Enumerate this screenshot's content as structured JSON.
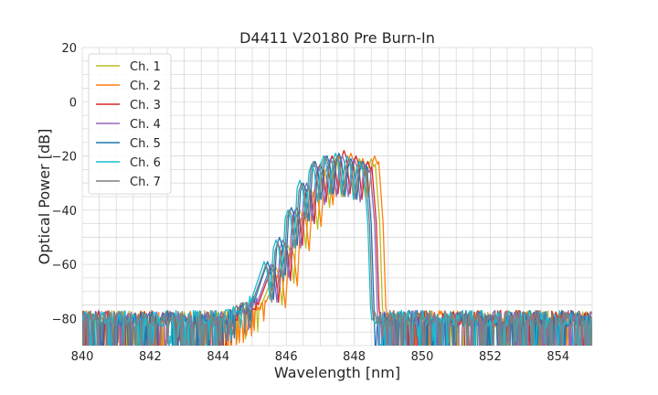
{
  "chart_data": {
    "type": "line",
    "title": "D4411 V20180 Pre Burn-In",
    "xlabel": "Wavelength [nm]",
    "ylabel": "Optical Power [dB]",
    "xlim": [
      840,
      855
    ],
    "ylim": [
      -90,
      20
    ],
    "xticks": [
      840,
      842,
      844,
      846,
      848,
      850,
      852,
      854
    ],
    "yticks": [
      -80,
      -60,
      -40,
      -20,
      0,
      20
    ],
    "grid": true,
    "legend_position": "top-left",
    "noise_floor_db": -80,
    "series": [
      {
        "name": "Ch. 1",
        "color": "#bcbd22",
        "peaks": [
          {
            "x": 845.7,
            "y": -61
          },
          {
            "x": 846.05,
            "y": -53
          },
          {
            "x": 846.4,
            "y": -40
          },
          {
            "x": 846.75,
            "y": -33
          },
          {
            "x": 847.1,
            "y": -25
          },
          {
            "x": 847.45,
            "y": -21
          },
          {
            "x": 847.8,
            "y": -20
          },
          {
            "x": 848.15,
            "y": -21
          },
          {
            "x": 848.5,
            "y": -21
          }
        ]
      },
      {
        "name": "Ch. 2",
        "color": "#ff7f0e",
        "peaks": [
          {
            "x": 845.8,
            "y": -62
          },
          {
            "x": 846.15,
            "y": -54
          },
          {
            "x": 846.5,
            "y": -41
          },
          {
            "x": 846.85,
            "y": -32
          },
          {
            "x": 847.2,
            "y": -24
          },
          {
            "x": 847.55,
            "y": -20
          },
          {
            "x": 847.9,
            "y": -19
          },
          {
            "x": 848.25,
            "y": -21
          },
          {
            "x": 848.6,
            "y": -20
          }
        ]
      },
      {
        "name": "Ch. 3",
        "color": "#d62728",
        "peaks": [
          {
            "x": 845.6,
            "y": -60
          },
          {
            "x": 845.95,
            "y": -52
          },
          {
            "x": 846.3,
            "y": -39
          },
          {
            "x": 846.65,
            "y": -31
          },
          {
            "x": 847.0,
            "y": -23
          },
          {
            "x": 847.35,
            "y": -20
          },
          {
            "x": 847.7,
            "y": -18
          },
          {
            "x": 848.05,
            "y": -20
          },
          {
            "x": 848.4,
            "y": -22
          }
        ]
      },
      {
        "name": "Ch. 4",
        "color": "#9467bd",
        "peaks": [
          {
            "x": 845.55,
            "y": -60
          },
          {
            "x": 845.9,
            "y": -51
          },
          {
            "x": 846.25,
            "y": -40
          },
          {
            "x": 846.6,
            "y": -30
          },
          {
            "x": 846.95,
            "y": -24
          },
          {
            "x": 847.3,
            "y": -21
          },
          {
            "x": 847.65,
            "y": -20
          },
          {
            "x": 848.0,
            "y": -21
          },
          {
            "x": 848.35,
            "y": -23
          }
        ]
      },
      {
        "name": "Ch. 5",
        "color": "#1f77b4",
        "peaks": [
          {
            "x": 845.45,
            "y": -59
          },
          {
            "x": 845.8,
            "y": -50
          },
          {
            "x": 846.15,
            "y": -39
          },
          {
            "x": 846.5,
            "y": -30
          },
          {
            "x": 846.85,
            "y": -22
          },
          {
            "x": 847.2,
            "y": -20
          },
          {
            "x": 847.55,
            "y": -19
          },
          {
            "x": 847.9,
            "y": -21
          },
          {
            "x": 848.25,
            "y": -22
          }
        ]
      },
      {
        "name": "Ch. 6",
        "color": "#17becf",
        "peaks": [
          {
            "x": 845.35,
            "y": -59
          },
          {
            "x": 845.7,
            "y": -51
          },
          {
            "x": 846.05,
            "y": -40
          },
          {
            "x": 846.4,
            "y": -29
          },
          {
            "x": 846.75,
            "y": -23
          },
          {
            "x": 847.1,
            "y": -20
          },
          {
            "x": 847.45,
            "y": -19
          },
          {
            "x": 847.8,
            "y": -20
          },
          {
            "x": 848.15,
            "y": -22
          }
        ]
      },
      {
        "name": "Ch. 7",
        "color": "#7f7f7f",
        "peaks": [
          {
            "x": 845.4,
            "y": -60
          },
          {
            "x": 845.75,
            "y": -52
          },
          {
            "x": 846.1,
            "y": -40
          },
          {
            "x": 846.45,
            "y": -30
          },
          {
            "x": 846.8,
            "y": -22
          },
          {
            "x": 847.15,
            "y": -20
          },
          {
            "x": 847.5,
            "y": -20
          },
          {
            "x": 847.85,
            "y": -21
          },
          {
            "x": 848.2,
            "y": -22
          }
        ]
      }
    ]
  }
}
